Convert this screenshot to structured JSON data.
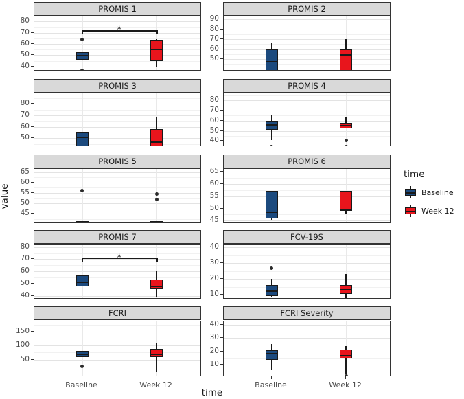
{
  "figure": {
    "y_axis_title": "value",
    "x_axis_title": "time",
    "x_categories": [
      "Baseline",
      "Week 12"
    ]
  },
  "legend": {
    "title": "time",
    "items": [
      {
        "label": "Baseline",
        "color": "#1c4a7e"
      },
      {
        "label": "Week 12",
        "color": "#e8151c"
      }
    ]
  },
  "colors": {
    "baseline_fill": "#1c4a7e",
    "week12_fill": "#e8151c",
    "box_outline": "#1a1a1a",
    "strip_fill": "#d9d9d9",
    "grid_major": "#e3e3e3"
  },
  "chart_data": {
    "type": "boxplot",
    "layout": "2x5 facet grid, free y scales, legend right",
    "x_categories": [
      "Baseline",
      "Week 12"
    ],
    "facets": [
      {
        "title": "PROMIS 1",
        "ylim": [
          35.5,
          84.5
        ],
        "yticks": [
          40,
          50,
          60,
          70,
          80
        ],
        "series": [
          {
            "group": "Baseline",
            "q1": 46,
            "median": 49.5,
            "q3": 52.5,
            "whisker_low": 43.5,
            "whisker_high": 53.5,
            "outliers": [
              64,
              36.5
            ]
          },
          {
            "group": "Week 12",
            "q1": 45,
            "median": 55,
            "q3": 64,
            "whisker_low": 39,
            "whisker_high": 64.5,
            "outliers": []
          }
        ],
        "signif": {
          "value": 72,
          "label": "*"
        }
      },
      {
        "title": "PROMIS 2",
        "ylim": [
          37.5,
          93
        ],
        "yticks": [
          50,
          60,
          70,
          80,
          90
        ],
        "series": [
          {
            "group": "Baseline",
            "q1": 35,
            "median": 47,
            "q3": 59.5,
            "whisker_low": 35,
            "whisker_high": 66,
            "outliers": []
          },
          {
            "group": "Week 12",
            "q1": 35,
            "median": 54,
            "q3": 60,
            "whisker_low": 35,
            "whisker_high": 70,
            "outliers": []
          }
        ]
      },
      {
        "title": "PROMIS 3",
        "ylim": [
          42.5,
          89
        ],
        "yticks": [
          50,
          60,
          70,
          80
        ],
        "series": [
          {
            "group": "Baseline",
            "q1": 40,
            "median": 51,
            "q3": 55.5,
            "whisker_low": 40,
            "whisker_high": 65,
            "outliers": []
          },
          {
            "group": "Week 12",
            "q1": 40,
            "median": 46.5,
            "q3": 58,
            "whisker_low": 40,
            "whisker_high": 69,
            "outliers": []
          }
        ]
      },
      {
        "title": "PROMIS 4",
        "ylim": [
          34,
          87
        ],
        "yticks": [
          40,
          50,
          60,
          70,
          80
        ],
        "series": [
          {
            "group": "Baseline",
            "q1": 51,
            "median": 55.5,
            "q3": 60,
            "whisker_low": 40.5,
            "whisker_high": 65.5,
            "outliers": [
              34.5
            ]
          },
          {
            "group": "Week 12",
            "q1": 52.5,
            "median": 55,
            "q3": 58,
            "whisker_low": 52.5,
            "whisker_high": 63,
            "outliers": [
              40.5,
              34.5
            ]
          }
        ]
      },
      {
        "title": "PROMIS 5",
        "ylim": [
          40.5,
          66.5
        ],
        "yticks": [
          45,
          50,
          55,
          60,
          65
        ],
        "series": [
          {
            "group": "Baseline",
            "q1": 41,
            "median": 41.3,
            "q3": 41.6,
            "whisker_low": 41,
            "whisker_high": 41.6,
            "outliers": [
              56
            ]
          },
          {
            "group": "Week 12",
            "q1": 41,
            "median": 41.3,
            "q3": 41.6,
            "whisker_low": 41,
            "whisker_high": 41.6,
            "outliers": [
              54.5,
              52
            ]
          }
        ]
      },
      {
        "title": "PROMIS 6",
        "ylim": [
          44,
          66
        ],
        "yticks": [
          45,
          50,
          55,
          60,
          65
        ],
        "series": [
          {
            "group": "Baseline",
            "q1": 46,
            "median": 48.5,
            "q3": 57,
            "whisker_low": 45,
            "whisker_high": 57,
            "outliers": []
          },
          {
            "group": "Week 12",
            "q1": 49,
            "median": 49.4,
            "q3": 57,
            "whisker_low": 47.5,
            "whisker_high": 57,
            "outliers": []
          }
        ]
      },
      {
        "title": "PROMIS 7",
        "ylim": [
          37,
          81.5
        ],
        "yticks": [
          40,
          50,
          60,
          70,
          80
        ],
        "series": [
          {
            "group": "Baseline",
            "q1": 47.5,
            "median": 51,
            "q3": 56.5,
            "whisker_low": 44,
            "whisker_high": 63,
            "outliers": []
          },
          {
            "group": "Week 12",
            "q1": 45.5,
            "median": 48,
            "q3": 53.5,
            "whisker_low": 39,
            "whisker_high": 60,
            "outliers": []
          }
        ],
        "signif": {
          "value": 71,
          "label": "*"
        }
      },
      {
        "title": "FCV-19S",
        "ylim": [
          7,
          41.5
        ],
        "yticks": [
          10,
          20,
          30,
          40
        ],
        "series": [
          {
            "group": "Baseline",
            "q1": 9,
            "median": 12.5,
            "q3": 16,
            "whisker_low": 8.5,
            "whisker_high": 20,
            "outliers": [
              27
            ]
          },
          {
            "group": "Week 12",
            "q1": 10.5,
            "median": 13,
            "q3": 16,
            "whisker_low": 7.5,
            "whisker_high": 23,
            "outliers": []
          }
        ]
      },
      {
        "title": "FCRI",
        "ylim": [
          -12,
          186
        ],
        "yticks": [
          50,
          100,
          150
        ],
        "series": [
          {
            "group": "Baseline",
            "q1": 60,
            "median": 70,
            "q3": 82,
            "whisker_low": 46,
            "whisker_high": 93,
            "outliers": [
              25
            ]
          },
          {
            "group": "Week 12",
            "q1": 58,
            "median": 68,
            "q3": 88,
            "whisker_low": 8,
            "whisker_high": 110,
            "outliers": []
          }
        ]
      },
      {
        "title": "FCRI Severity",
        "ylim": [
          1,
          42.5
        ],
        "yticks": [
          10,
          20,
          30,
          40
        ],
        "series": [
          {
            "group": "Baseline",
            "q1": 14,
            "median": 18.5,
            "q3": 21,
            "whisker_low": 6,
            "whisker_high": 25.5,
            "outliers": []
          },
          {
            "group": "Week 12",
            "q1": 15,
            "median": 17,
            "q3": 21.5,
            "whisker_low": 3,
            "whisker_high": 24,
            "outliers": [
              2
            ]
          }
        ]
      }
    ]
  }
}
